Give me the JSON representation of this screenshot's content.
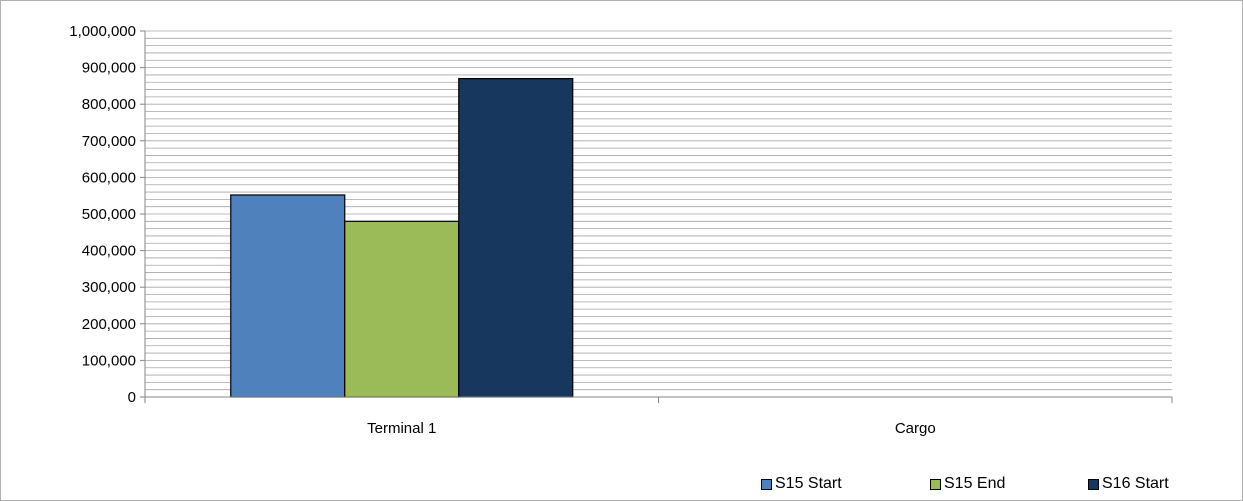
{
  "title": "",
  "colors": {
    "S15 Start": "#4F81BD",
    "S15 End": "#9BBB59",
    "S16 Start": "#17375E",
    "grid": "#a6a6a6",
    "axis": "#868686"
  },
  "chart_data": {
    "type": "bar",
    "categories": [
      "Terminal 1",
      "Cargo"
    ],
    "series": [
      {
        "name": "S15 Start",
        "values": [
          552000,
          0
        ]
      },
      {
        "name": "S15 End",
        "values": [
          480000,
          0
        ]
      },
      {
        "name": "S16 Start",
        "values": [
          870000,
          0
        ]
      }
    ],
    "ylim": [
      0,
      1000000
    ],
    "y_major_step": 100000,
    "y_minor_step": 20000,
    "ytick_labels": [
      "0",
      "100,000",
      "200,000",
      "300,000",
      "400,000",
      "500,000",
      "600,000",
      "700,000",
      "800,000",
      "900,000",
      "1,000,000"
    ],
    "xlabel": "",
    "ylabel": "",
    "grid": true,
    "legend_position": "bottom-right"
  }
}
